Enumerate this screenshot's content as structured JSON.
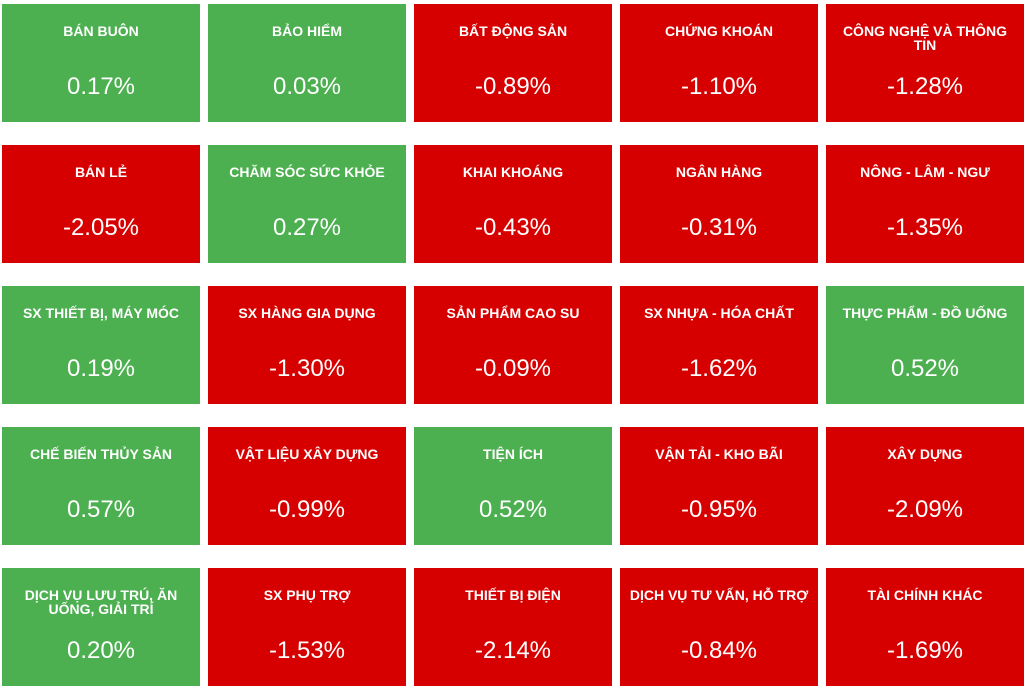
{
  "colors": {
    "up": "#4caf50",
    "down": "#d70000"
  },
  "tiles": [
    {
      "label": "BÁN BUÔN",
      "value": "0.17%",
      "trend": "up"
    },
    {
      "label": "BẢO HIỂM",
      "value": "0.03%",
      "trend": "up"
    },
    {
      "label": "BẤT ĐỘNG SẢN",
      "value": "-0.89%",
      "trend": "down"
    },
    {
      "label": "CHỨNG KHOÁN",
      "value": "-1.10%",
      "trend": "down"
    },
    {
      "label": "CÔNG NGHỆ VÀ THÔNG TIN",
      "value": "-1.28%",
      "trend": "down"
    },
    {
      "label": "BÁN LẺ",
      "value": "-2.05%",
      "trend": "down"
    },
    {
      "label": "CHĂM SÓC SỨC KHỎE",
      "value": "0.27%",
      "trend": "up"
    },
    {
      "label": "KHAI KHOÁNG",
      "value": "-0.43%",
      "trend": "down"
    },
    {
      "label": "NGÂN HÀNG",
      "value": "-0.31%",
      "trend": "down"
    },
    {
      "label": "NÔNG - LÂM - NGƯ",
      "value": "-1.35%",
      "trend": "down"
    },
    {
      "label": "SX THIẾT BỊ, MÁY MÓC",
      "value": "0.19%",
      "trend": "up"
    },
    {
      "label": "SX HÀNG GIA DỤNG",
      "value": "-1.30%",
      "trend": "down"
    },
    {
      "label": "SẢN PHẨM CAO SU",
      "value": "-0.09%",
      "trend": "down"
    },
    {
      "label": "SX NHỰA - HÓA CHẤT",
      "value": "-1.62%",
      "trend": "down"
    },
    {
      "label": "THỰC PHẨM - ĐỒ UỐNG",
      "value": "0.52%",
      "trend": "up"
    },
    {
      "label": "CHẾ BIẾN THỦY SẢN",
      "value": "0.57%",
      "trend": "up"
    },
    {
      "label": "VẬT LIỆU XÂY DỰNG",
      "value": "-0.99%",
      "trend": "down"
    },
    {
      "label": "TIỆN ÍCH",
      "value": "0.52%",
      "trend": "up"
    },
    {
      "label": "VẬN TẢI - KHO BÃI",
      "value": "-0.95%",
      "trend": "down"
    },
    {
      "label": "XÂY DỰNG",
      "value": "-2.09%",
      "trend": "down"
    },
    {
      "label": "DỊCH VỤ LƯU TRÚ, ĂN UỐNG, GIẢI TRÍ",
      "value": "0.20%",
      "trend": "up"
    },
    {
      "label": "SX PHỤ TRỢ",
      "value": "-1.53%",
      "trend": "down"
    },
    {
      "label": "THIẾT BỊ ĐIỆN",
      "value": "-2.14%",
      "trend": "down"
    },
    {
      "label": "DỊCH VỤ TƯ VẤN, HỖ TRỢ",
      "value": "-0.84%",
      "trend": "down"
    },
    {
      "label": "TÀI CHÍNH KHÁC",
      "value": "-1.69%",
      "trend": "down"
    }
  ]
}
